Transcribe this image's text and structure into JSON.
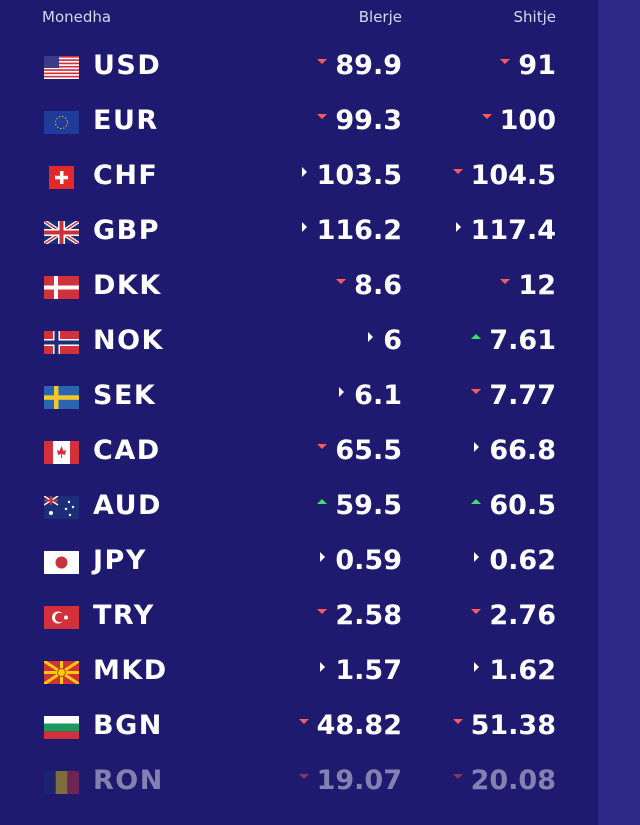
{
  "header": {
    "currency": "Monedha",
    "buy": "Blerje",
    "sell": "Shitje"
  },
  "rows": [
    {
      "code": "USD",
      "flag": "us-flag-icon",
      "buy": "89.9",
      "buy_trend": "down",
      "sell": "91",
      "sell_trend": "down"
    },
    {
      "code": "EUR",
      "flag": "eu-flag-icon",
      "buy": "99.3",
      "buy_trend": "down",
      "sell": "100",
      "sell_trend": "down"
    },
    {
      "code": "CHF",
      "flag": "ch-flag-icon",
      "buy": "103.5",
      "buy_trend": "same",
      "sell": "104.5",
      "sell_trend": "down"
    },
    {
      "code": "GBP",
      "flag": "gb-flag-icon",
      "buy": "116.2",
      "buy_trend": "same",
      "sell": "117.4",
      "sell_trend": "same"
    },
    {
      "code": "DKK",
      "flag": "dk-flag-icon",
      "buy": "8.6",
      "buy_trend": "down",
      "sell": "12",
      "sell_trend": "down"
    },
    {
      "code": "NOK",
      "flag": "no-flag-icon",
      "buy": "6",
      "buy_trend": "same",
      "sell": "7.61",
      "sell_trend": "up"
    },
    {
      "code": "SEK",
      "flag": "se-flag-icon",
      "buy": "6.1",
      "buy_trend": "same",
      "sell": "7.77",
      "sell_trend": "down"
    },
    {
      "code": "CAD",
      "flag": "ca-flag-icon",
      "buy": "65.5",
      "buy_trend": "down",
      "sell": "66.8",
      "sell_trend": "same"
    },
    {
      "code": "AUD",
      "flag": "au-flag-icon",
      "buy": "59.5",
      "buy_trend": "up",
      "sell": "60.5",
      "sell_trend": "up"
    },
    {
      "code": "JPY",
      "flag": "jp-flag-icon",
      "buy": "0.59",
      "buy_trend": "same",
      "sell": "0.62",
      "sell_trend": "same"
    },
    {
      "code": "TRY",
      "flag": "tr-flag-icon",
      "buy": "2.58",
      "buy_trend": "down",
      "sell": "2.76",
      "sell_trend": "down"
    },
    {
      "code": "MKD",
      "flag": "mk-flag-icon",
      "buy": "1.57",
      "buy_trend": "same",
      "sell": "1.62",
      "sell_trend": "same"
    },
    {
      "code": "BGN",
      "flag": "bg-flag-icon",
      "buy": "48.82",
      "buy_trend": "down",
      "sell": "51.38",
      "sell_trend": "down"
    },
    {
      "code": "RON",
      "flag": "ro-flag-icon",
      "buy": "19.07",
      "buy_trend": "down",
      "sell": "20.08",
      "sell_trend": "down"
    }
  ],
  "colors": {
    "background": "#1d1a6f",
    "down": "#ff5b5b",
    "up": "#3ce06b"
  }
}
